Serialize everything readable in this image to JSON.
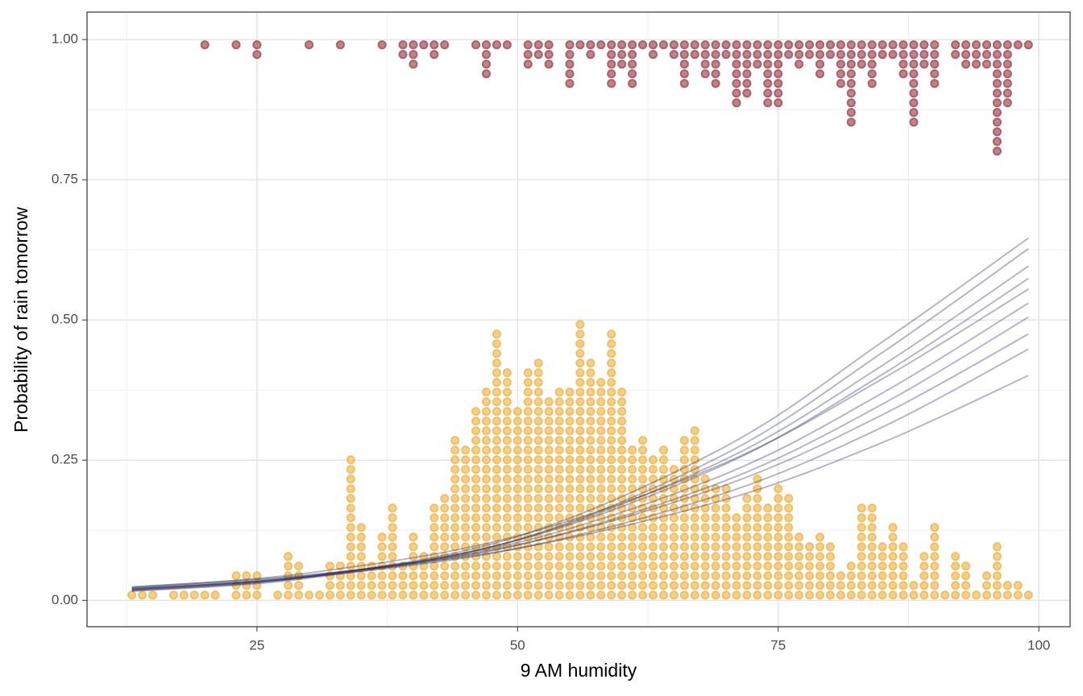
{
  "chart_data": {
    "type": "logistic-dotplot",
    "x_label": "9 AM humidity",
    "y_label": "Probability of rain tomorrow",
    "xlim": [
      8.7,
      103
    ],
    "ylim": [
      -0.047,
      1.049
    ],
    "xticks": [
      25,
      50,
      75,
      100
    ],
    "yticks": [
      {
        "value": 0,
        "label": "0.00"
      },
      {
        "value": 0.25,
        "label": "0.25"
      },
      {
        "value": 0.5,
        "label": "0.50"
      },
      {
        "value": 0.75,
        "label": "0.75"
      },
      {
        "value": 1,
        "label": "1.00"
      }
    ],
    "xminor": [
      12.5,
      37.5,
      62.5,
      87.5
    ],
    "yminor": [
      0.125,
      0.375,
      0.625,
      0.875
    ],
    "grid": true,
    "no_rain": {
      "color": "#f2c36b",
      "edge": "#eab955",
      "x": [
        13,
        14,
        15,
        17,
        18,
        19,
        20,
        21,
        23,
        24,
        25,
        27,
        28,
        29,
        30,
        31,
        32,
        33,
        34,
        35,
        36,
        37,
        38,
        39,
        40,
        41,
        42,
        43,
        44,
        45,
        46,
        47,
        48,
        49,
        50,
        51,
        52,
        53,
        54,
        55,
        56,
        57,
        58,
        59,
        60,
        61,
        62,
        63,
        64,
        65,
        66,
        67,
        68,
        69,
        70,
        71,
        72,
        73,
        74,
        75,
        76,
        77,
        78,
        79,
        80,
        81,
        82,
        83,
        84,
        85,
        86,
        87,
        88,
        89,
        90,
        91,
        92,
        93,
        94,
        95,
        96,
        97,
        98,
        99
      ],
      "counts": [
        1,
        1,
        1,
        1,
        1,
        1,
        1,
        1,
        3,
        3,
        3,
        1,
        5,
        4,
        1,
        1,
        4,
        4,
        15,
        8,
        4,
        7,
        10,
        4,
        7,
        5,
        10,
        11,
        17,
        16,
        20,
        22,
        28,
        24,
        20,
        24,
        25,
        21,
        22,
        22,
        29,
        25,
        23,
        28,
        22,
        16,
        17,
        15,
        16,
        14,
        17,
        18,
        13,
        12,
        12,
        9,
        11,
        13,
        10,
        12,
        11,
        7,
        6,
        7,
        6,
        3,
        4,
        10,
        10,
        6,
        8,
        6,
        2,
        5,
        8,
        1,
        5,
        4,
        1,
        3,
        6,
        2,
        2,
        1
      ]
    },
    "rain": {
      "color": "#b0646c",
      "edge": "#9c4f5a",
      "x": [
        20,
        23,
        25,
        30,
        33,
        37,
        39,
        40,
        41,
        42,
        43,
        46,
        47,
        48,
        49,
        51,
        52,
        53,
        55,
        56,
        57,
        58,
        59,
        60,
        61,
        62,
        63,
        64,
        65,
        66,
        67,
        68,
        69,
        70,
        71,
        72,
        73,
        74,
        75,
        76,
        77,
        78,
        79,
        80,
        81,
        82,
        83,
        84,
        85,
        86,
        87,
        88,
        89,
        90,
        92,
        93,
        94,
        95,
        96,
        97,
        98,
        99
      ],
      "counts": [
        1,
        1,
        2,
        1,
        1,
        1,
        2,
        3,
        1,
        2,
        1,
        1,
        4,
        1,
        1,
        3,
        2,
        3,
        5,
        1,
        2,
        1,
        5,
        3,
        5,
        1,
        2,
        1,
        2,
        5,
        2,
        4,
        5,
        2,
        7,
        6,
        3,
        7,
        7,
        2,
        3,
        2,
        4,
        2,
        5,
        9,
        3,
        5,
        2,
        2,
        4,
        9,
        3,
        5,
        2,
        3,
        3,
        3,
        12,
        7,
        1,
        1
      ]
    },
    "fits": {
      "color": "#2b2d5e",
      "x": [
        13,
        30,
        50,
        70,
        85,
        99
      ],
      "draws": [
        [
          0.02,
          0.0432,
          0.1029,
          0.2258,
          0.3698,
          0.53
        ],
        [
          0.0189,
          0.0427,
          0.107,
          0.2436,
          0.403,
          0.574
        ],
        [
          0.0219,
          0.0444,
          0.099,
          0.206,
          0.331,
          0.475
        ],
        [
          0.0241,
          0.0453,
          0.0928,
          0.18,
          0.2815,
          0.401
        ],
        [
          0.0171,
          0.0418,
          0.114,
          0.275,
          0.461,
          0.646
        ],
        [
          0.0208,
          0.0419,
          0.0925,
          0.192,
          0.309,
          0.448
        ],
        [
          0.018,
          0.0418,
          0.108,
          0.252,
          0.419,
          0.596
        ],
        [
          0.0198,
          0.0421,
          0.0985,
          0.214,
          0.35,
          0.505
        ],
        [
          0.023,
          0.049,
          0.115,
          0.246,
          0.395,
          0.555
        ],
        [
          0.0163,
          0.0397,
          0.108,
          0.262,
          0.442,
          0.627
        ]
      ]
    }
  }
}
